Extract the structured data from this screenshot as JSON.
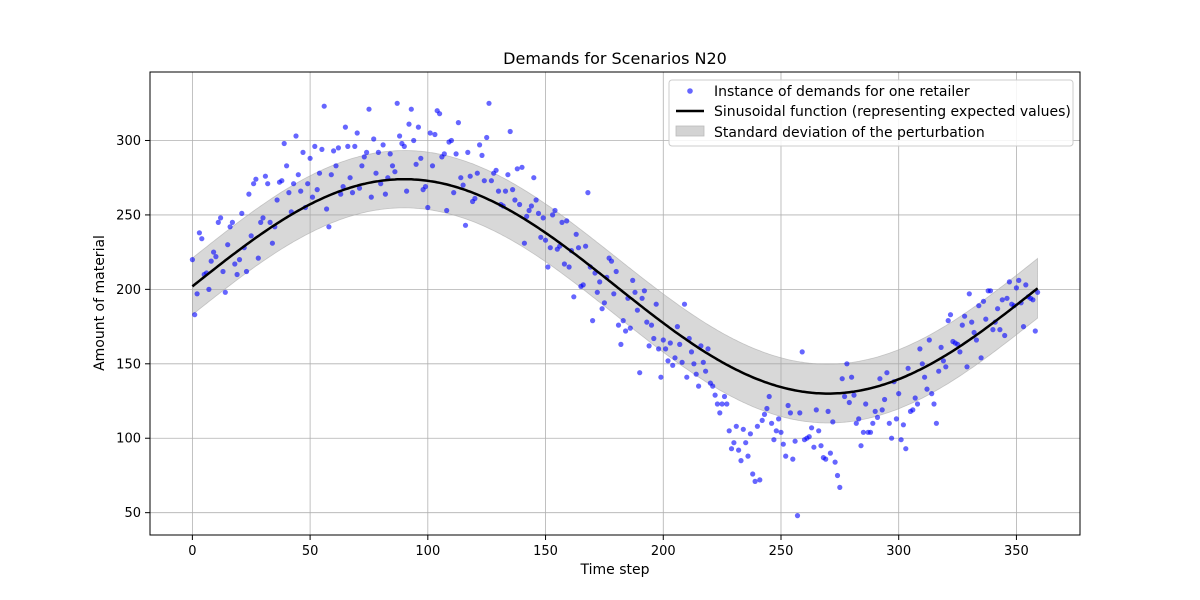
{
  "chart_data": {
    "type": "scatter",
    "title": "Demands for Scenarios N20",
    "xlabel": "Time step",
    "ylabel": "Amount of material",
    "xlim": [
      -18,
      377
    ],
    "ylim": [
      35,
      346
    ],
    "xticks": [
      0,
      50,
      100,
      150,
      200,
      250,
      300,
      350
    ],
    "yticks": [
      50,
      100,
      150,
      200,
      250,
      300
    ],
    "grid": true,
    "legend_position": "top-right",
    "legend": [
      "Instance of demands for one retailer",
      "Sinusoidal function (representing expected values)",
      "Standard deviation of the perturbation"
    ],
    "sine": {
      "offset": 202,
      "amplitude": 72,
      "period": 360,
      "x_start": 0,
      "x_end": 359
    },
    "band": {
      "half_width_start": 19,
      "half_width_end": 20
    },
    "scatter": {
      "x": [
        0,
        1,
        2,
        3,
        4,
        5,
        6,
        7,
        8,
        9,
        10,
        11,
        12,
        13,
        14,
        15,
        16,
        17,
        18,
        19,
        20,
        21,
        22,
        23,
        24,
        25,
        26,
        27,
        28,
        29,
        30,
        31,
        32,
        33,
        34,
        35,
        36,
        37,
        38,
        39,
        40,
        41,
        42,
        43,
        44,
        45,
        46,
        47,
        48,
        49,
        50,
        51,
        52,
        53,
        54,
        55,
        56,
        57,
        58,
        59,
        60,
        61,
        62,
        63,
        64,
        65,
        66,
        67,
        68,
        69,
        70,
        71,
        72,
        73,
        74,
        75,
        76,
        77,
        78,
        79,
        80,
        81,
        82,
        83,
        84,
        85,
        86,
        87,
        88,
        89,
        90,
        91,
        92,
        93,
        94,
        95,
        96,
        97,
        98,
        99,
        100,
        101,
        102,
        103,
        104,
        105,
        106,
        107,
        108,
        109,
        110,
        111,
        112,
        113,
        114,
        115,
        116,
        117,
        118,
        119,
        120,
        121,
        122,
        123,
        124,
        125,
        126,
        127,
        128,
        129,
        130,
        131,
        132,
        133,
        134,
        135,
        136,
        137,
        138,
        139,
        140,
        141,
        142,
        143,
        144,
        145,
        146,
        147,
        148,
        149,
        150,
        151,
        152,
        153,
        154,
        155,
        156,
        157,
        158,
        159,
        160,
        161,
        162,
        163,
        164,
        165,
        166,
        167,
        168,
        169,
        170,
        171,
        172,
        173,
        174,
        175,
        176,
        177,
        178,
        179,
        180,
        181,
        182,
        183,
        184,
        185,
        186,
        187,
        188,
        189,
        190,
        191,
        192,
        193,
        194,
        195,
        196,
        197,
        198,
        199,
        200,
        201,
        202,
        203,
        204,
        205,
        206,
        207,
        208,
        209,
        210,
        211,
        212,
        213,
        214,
        215,
        216,
        217,
        218,
        219,
        220,
        221,
        222,
        223,
        224,
        225,
        226,
        227,
        228,
        229,
        230,
        231,
        232,
        233,
        234,
        235,
        236,
        237,
        238,
        239,
        240,
        241,
        242,
        243,
        244,
        245,
        246,
        247,
        248,
        249,
        250,
        251,
        252,
        253,
        254,
        255,
        256,
        257,
        258,
        259,
        260,
        261,
        262,
        263,
        264,
        265,
        266,
        267,
        268,
        269,
        270,
        271,
        272,
        273,
        274,
        275,
        276,
        277,
        278,
        279,
        280,
        281,
        282,
        283,
        284,
        285,
        286,
        287,
        288,
        289,
        290,
        291,
        292,
        293,
        294,
        295,
        296,
        297,
        298,
        299,
        300,
        301,
        302,
        303,
        304,
        305,
        306,
        307,
        308,
        309,
        310,
        311,
        312,
        313,
        314,
        315,
        316,
        317,
        318,
        319,
        320,
        321,
        322,
        323,
        324,
        325,
        326,
        327,
        328,
        329,
        330,
        331,
        332,
        333,
        334,
        335,
        336,
        337,
        338,
        339,
        340,
        341,
        342,
        343,
        344,
        345,
        346,
        347,
        348,
        349,
        350,
        351,
        352,
        353,
        354,
        355,
        356,
        357,
        358,
        359
      ],
      "y": [
        220,
        183,
        197,
        238,
        234,
        210,
        211,
        200,
        219,
        225,
        222,
        245,
        248,
        212,
        198,
        230,
        242,
        245,
        217,
        210,
        220,
        251,
        228,
        212,
        264,
        236,
        271,
        274,
        221,
        245,
        248,
        276,
        271,
        245,
        231,
        242,
        260,
        272,
        273,
        298,
        283,
        265,
        252,
        271,
        303,
        277,
        266,
        292,
        255,
        271,
        288,
        262,
        296,
        267,
        278,
        294,
        323,
        254,
        242,
        277,
        293,
        283,
        295,
        264,
        269,
        309,
        296,
        275,
        265,
        296,
        305,
        268,
        283,
        289,
        292,
        321,
        262,
        301,
        278,
        292,
        271,
        297,
        264,
        275,
        291,
        283,
        279,
        325,
        303,
        298,
        296,
        266,
        311,
        321,
        300,
        284,
        309,
        288,
        267,
        269,
        255,
        305,
        283,
        304,
        320,
        318,
        289,
        291,
        253,
        299,
        300,
        265,
        291,
        312,
        275,
        270,
        243,
        292,
        276,
        259,
        261,
        278,
        297,
        290,
        273,
        302,
        325,
        273,
        278,
        280,
        266,
        257,
        256,
        266,
        277,
        306,
        267,
        260,
        281,
        257,
        282,
        231,
        249,
        253,
        256,
        275,
        260,
        251,
        235,
        248,
        233,
        215,
        228,
        250,
        253,
        227,
        229,
        245,
        217,
        246,
        215,
        226,
        195,
        237,
        228,
        202,
        203,
        229,
        265,
        215,
        179,
        211,
        198,
        205,
        187,
        191,
        208,
        221,
        219,
        197,
        212,
        176,
        163,
        179,
        172,
        194,
        174,
        206,
        198,
        186,
        144,
        194,
        199,
        178,
        162,
        176,
        167,
        190,
        160,
        141,
        166,
        160,
        152,
        164,
        149,
        154,
        175,
        163,
        151,
        190,
        141,
        167,
        158,
        150,
        143,
        135,
        162,
        151,
        145,
        160,
        137,
        135,
        129,
        123,
        117,
        123,
        128,
        123,
        105,
        93,
        97,
        108,
        92,
        85,
        106,
        97,
        88,
        103,
        76,
        71,
        108,
        72,
        112,
        116,
        120,
        128,
        110,
        99,
        105,
        113,
        104,
        96,
        88,
        122,
        117,
        86,
        98,
        48,
        117,
        158,
        99,
        100,
        101,
        107,
        94,
        119,
        105,
        95,
        87,
        86,
        118,
        90,
        111,
        84,
        75,
        67,
        140,
        128,
        150,
        124,
        141,
        129,
        110,
        113,
        95,
        104,
        123,
        104,
        104,
        110,
        118,
        114,
        140,
        119,
        126,
        144,
        110,
        100,
        138,
        113,
        130,
        99,
        109,
        93,
        147,
        118,
        119,
        127,
        123,
        160,
        150,
        141,
        133,
        166,
        130,
        123,
        110,
        145,
        161,
        152,
        148,
        179,
        183,
        165,
        164,
        163,
        158,
        176,
        182,
        148,
        197,
        178,
        171,
        166,
        189,
        154,
        192,
        180,
        199,
        199,
        173,
        178,
        187,
        173,
        193,
        169,
        194,
        205,
        190,
        189,
        201,
        206,
        191,
        175,
        203,
        195,
        194,
        193,
        172,
        198
      ]
    }
  }
}
